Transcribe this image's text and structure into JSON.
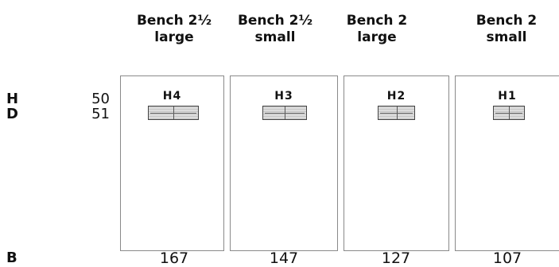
{
  "row_labels": {
    "height": {
      "label": "H",
      "value": "50"
    },
    "depth": {
      "label": "D",
      "value": "51"
    },
    "width": {
      "label": "B"
    }
  },
  "benches": [
    {
      "header_line1": "Bench 2½",
      "header_line2": "large",
      "code": "H4",
      "width": "167"
    },
    {
      "header_line1": "Bench 2½",
      "header_line2": "small",
      "code": "H3",
      "width": "147"
    },
    {
      "header_line1": "Bench 2",
      "header_line2": "large",
      "code": "H2",
      "width": "127"
    },
    {
      "header_line1": "Bench 2",
      "header_line2": "small",
      "code": "H1",
      "width": "107"
    }
  ]
}
